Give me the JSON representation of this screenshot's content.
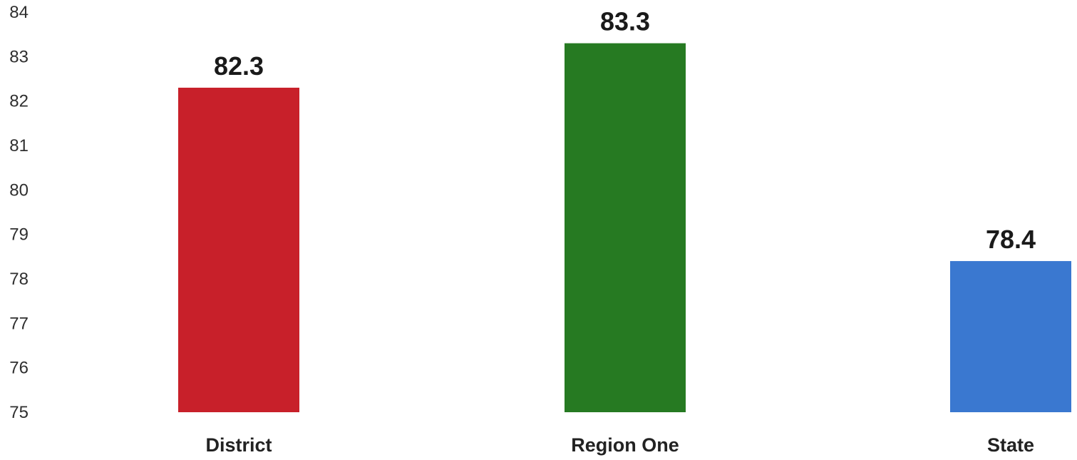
{
  "chart_data": {
    "type": "bar",
    "categories": [
      "District",
      "Region One",
      "State"
    ],
    "values": [
      82.3,
      83.3,
      78.4
    ],
    "value_labels": [
      "82.3",
      "83.3",
      "78.4"
    ],
    "colors": [
      "#c8202a",
      "#267a22",
      "#3a78d0"
    ],
    "ylim": [
      75,
      84
    ],
    "yticks": [
      "75",
      "76",
      "77",
      "78",
      "79",
      "80",
      "81",
      "82",
      "83",
      "84"
    ],
    "grid": false,
    "title": "",
    "xlabel": "",
    "ylabel": ""
  }
}
